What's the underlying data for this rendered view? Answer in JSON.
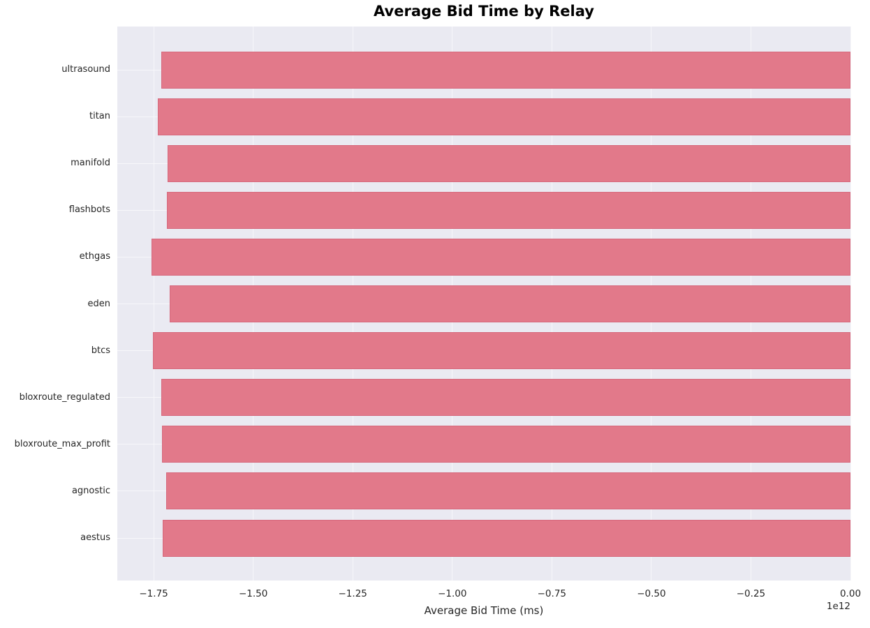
{
  "figure": {
    "plot_bg_color": "#eaeaf2",
    "grid_color": "#f7f7fa",
    "bar_color": "#e2798a",
    "bar_edge_color": "#d6687c",
    "text_color": "#262626",
    "title_color": "#000000"
  },
  "chart_data": {
    "type": "bar",
    "orientation": "horizontal",
    "title": "Average Bid Time by Relay",
    "xlabel": "Average Bid Time (ms)",
    "ylabel": "",
    "categories": [
      "ultrasound",
      "titan",
      "manifold",
      "flashbots",
      "ethgas",
      "eden",
      "btcs",
      "bloxroute_regulated",
      "bloxroute_max_profit",
      "agnostic",
      "aestus"
    ],
    "values": [
      -1731000000000.0,
      -1740000000000.0,
      -1715000000000.0,
      -1717000000000.0,
      -1755000000000.0,
      -1710000000000.0,
      -1752000000000.0,
      -1731000000000.0,
      -1729000000000.0,
      -1719000000000.0,
      -1727000000000.0
    ],
    "xlim": [
      -1841300000000.0,
      0
    ],
    "x_tick_values": [
      -1750000000000.0,
      -1500000000000.0,
      -1250000000000.0,
      -1000000000000.0,
      -750000000000.0,
      -500000000000.0,
      -250000000000.0,
      0
    ],
    "x_tick_labels": [
      "−1.75",
      "−1.50",
      "−1.25",
      "−1.00",
      "−0.75",
      "−0.50",
      "−0.25",
      "0.00"
    ],
    "offset_text": "1e12",
    "grid": true,
    "legend": null
  }
}
